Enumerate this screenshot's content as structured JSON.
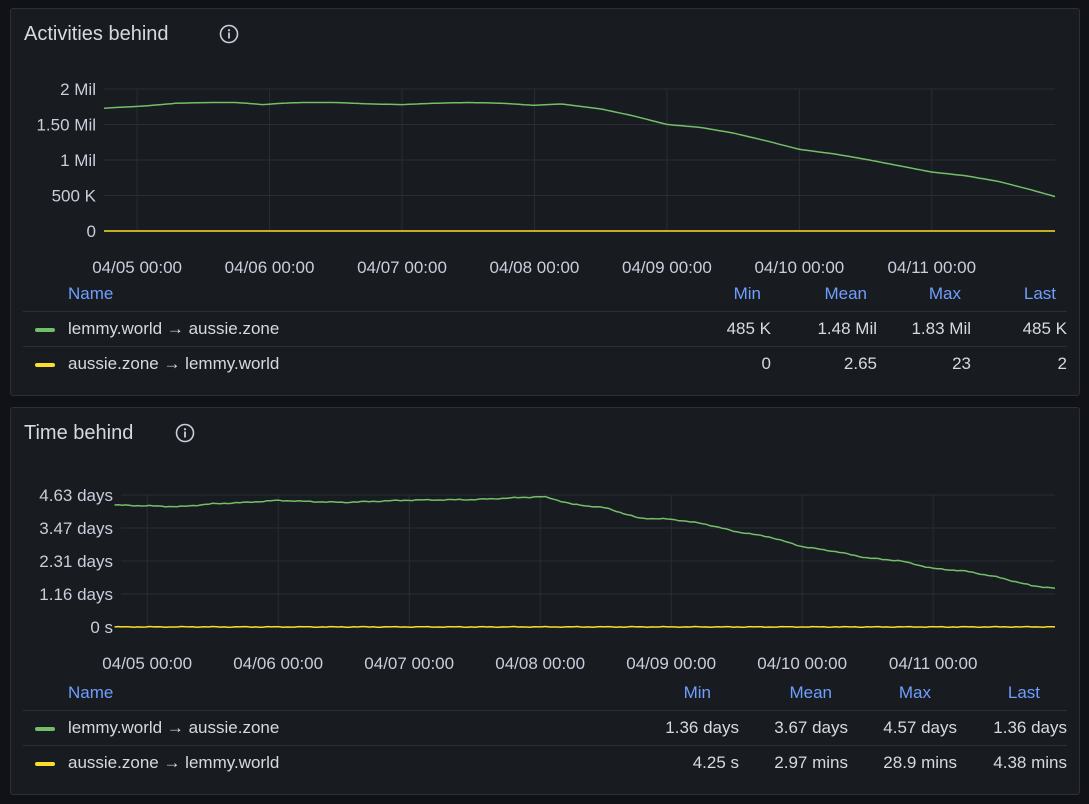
{
  "colors": {
    "green": "#73bf69",
    "yellow": "#fade2a",
    "grid": "#2a2d33",
    "header": "#6e9fff"
  },
  "panels": [
    {
      "title": "Activities behind",
      "info_icon": "info-circle-icon",
      "legend": {
        "name_header": "Name",
        "headers": [
          "Min",
          "Mean",
          "Max",
          "Last"
        ],
        "rows": [
          {
            "name": "lemmy.world → aussie.zone",
            "color": "#73bf69",
            "values": [
              "485 K",
              "1.48 Mil",
              "1.83 Mil",
              "485 K"
            ]
          },
          {
            "name": "aussie.zone → lemmy.world",
            "color": "#fade2a",
            "values": [
              "0",
              "2.65",
              "23",
              "2"
            ]
          }
        ]
      }
    },
    {
      "title": "Time behind",
      "info_icon": "info-circle-icon",
      "legend": {
        "name_header": "Name",
        "headers": [
          "Min",
          "Mean",
          "Max",
          "Last"
        ],
        "rows": [
          {
            "name": "lemmy.world → aussie.zone",
            "color": "#73bf69",
            "values": [
              "1.36 days",
              "3.67 days",
              "4.57 days",
              "1.36 days"
            ]
          },
          {
            "name": "aussie.zone → lemmy.world",
            "color": "#fade2a",
            "values": [
              "4.25 s",
              "2.97 mins",
              "28.9 mins",
              "4.38 mins"
            ]
          }
        ]
      }
    }
  ],
  "chart_data": [
    {
      "type": "line",
      "title": "Activities behind",
      "x_range": [
        "04/04 18:00",
        "04/11 20:00"
      ],
      "x_ticks": [
        "04/05 00:00",
        "04/06 00:00",
        "04/07 00:00",
        "04/08 00:00",
        "04/09 00:00",
        "04/10 00:00",
        "04/11 00:00"
      ],
      "y_ticks": [
        "0",
        "500 K",
        "1 Mil",
        "1.50 Mil",
        "2 Mil"
      ],
      "ylim": [
        0,
        2000000
      ],
      "grid": true,
      "series": [
        {
          "name": "lemmy.world → aussie.zone",
          "color": "#73bf69",
          "x": [
            -0.25,
            0.05,
            0.3,
            0.55,
            0.75,
            0.95,
            1.1,
            1.25,
            1.5,
            1.75,
            2.0,
            2.25,
            2.5,
            2.75,
            3.0,
            3.2,
            3.5,
            3.75,
            4.0,
            4.25,
            4.5,
            4.75,
            5.0,
            5.25,
            5.5,
            5.75,
            6.0,
            6.25,
            6.5,
            6.75,
            6.93
          ],
          "y": [
            1730000,
            1760000,
            1800000,
            1810000,
            1810000,
            1780000,
            1800000,
            1810000,
            1810000,
            1790000,
            1780000,
            1800000,
            1810000,
            1800000,
            1770000,
            1790000,
            1720000,
            1620000,
            1500000,
            1460000,
            1380000,
            1270000,
            1150000,
            1090000,
            1010000,
            920000,
            830000,
            780000,
            700000,
            580000,
            485000
          ]
        },
        {
          "name": "aussie.zone → lemmy.world",
          "color": "#fade2a",
          "x": [
            -0.25,
            6.93
          ],
          "y": [
            2,
            2
          ]
        }
      ]
    },
    {
      "type": "line",
      "title": "Time behind",
      "x_range": [
        "04/04 18:00",
        "04/11 20:00"
      ],
      "x_ticks": [
        "04/05 00:00",
        "04/06 00:00",
        "04/07 00:00",
        "04/08 00:00",
        "04/09 00:00",
        "04/10 00:00",
        "04/11 00:00"
      ],
      "y_ticks": [
        "0 s",
        "1.16 days",
        "2.31 days",
        "3.47 days",
        "4.63 days"
      ],
      "ylim": [
        0,
        4.63
      ],
      "grid": true,
      "series": [
        {
          "name": "lemmy.world → aussie.zone",
          "color": "#73bf69",
          "x": [
            -0.25,
            0.25,
            0.5,
            0.75,
            1.0,
            1.25,
            1.5,
            2.0,
            2.5,
            3.0,
            3.05,
            3.25,
            3.5,
            3.75,
            4.0,
            4.25,
            4.5,
            4.75,
            5.0,
            5.25,
            5.5,
            5.75,
            6.0,
            6.25,
            6.5,
            6.75,
            6.93
          ],
          "y": [
            4.28,
            4.22,
            4.32,
            4.37,
            4.44,
            4.4,
            4.37,
            4.45,
            4.47,
            4.57,
            4.55,
            4.3,
            4.18,
            3.82,
            3.78,
            3.62,
            3.34,
            3.16,
            2.82,
            2.65,
            2.42,
            2.32,
            2.05,
            1.96,
            1.74,
            1.45,
            1.36
          ],
          "noise": 0.02
        },
        {
          "name": "aussie.zone → lemmy.world",
          "color": "#fade2a",
          "x": [
            -0.25,
            6.93
          ],
          "y": [
            0.003,
            0.003
          ],
          "noise": 0.015
        }
      ]
    }
  ]
}
